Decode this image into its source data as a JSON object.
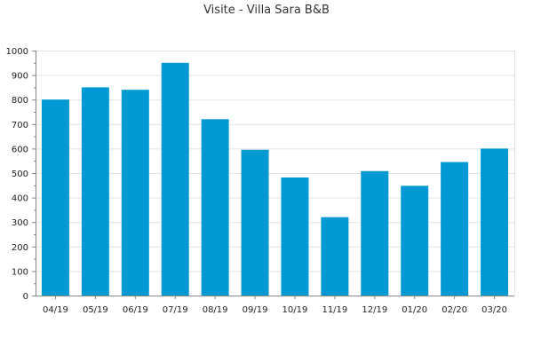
{
  "chart_data": {
    "type": "bar",
    "title": "Visite - Villa Sara B&B",
    "xlabel": "",
    "ylabel": "",
    "categories": [
      "04/19",
      "05/19",
      "06/19",
      "07/19",
      "08/19",
      "09/19",
      "10/19",
      "11/19",
      "12/19",
      "01/20",
      "02/20",
      "03/20"
    ],
    "values": [
      800,
      850,
      840,
      950,
      720,
      595,
      482,
      320,
      508,
      448,
      545,
      600
    ],
    "ylim": [
      0,
      1000
    ],
    "yticks": [
      0,
      100,
      200,
      300,
      400,
      500,
      600,
      700,
      800,
      900,
      1000
    ],
    "grid": true,
    "legend": "none",
    "colors": {
      "bar": "#0099d4",
      "grid": "#e3e3e3",
      "axis": "#888888"
    }
  }
}
